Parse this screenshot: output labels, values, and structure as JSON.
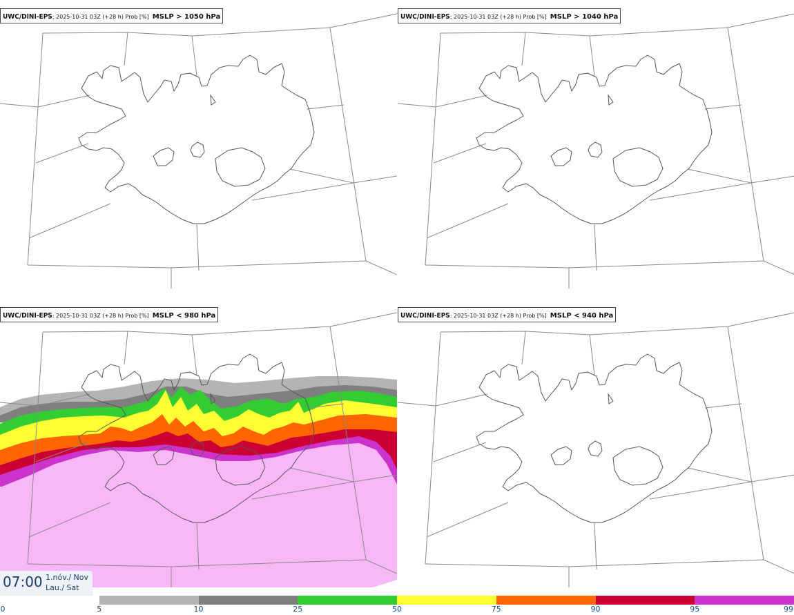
{
  "panels": [
    {
      "id": "p1",
      "model": "UWC/DINI-EPS",
      "run": "2025-10-31 03Z (+28 h) Prob [%]",
      "param": "MSLP > 1050 hPa",
      "has_probability_field": false
    },
    {
      "id": "p2",
      "model": "UWC/DINI-EPS",
      "run": "2025-10-31 03Z (+28 h) Prob [%]",
      "param": "MSLP > 1040 hPa",
      "has_probability_field": false
    },
    {
      "id": "p3",
      "model": "UWC/DINI-EPS",
      "run": "2025-10-31 03Z (+28 h) Prob [%]",
      "param": "MSLP < 980 hPa",
      "has_probability_field": true
    },
    {
      "id": "p4",
      "model": "UWC/DINI-EPS",
      "run": "2025-10-31 03Z (+28 h) Prob [%]",
      "param": "MSLP < 940 hPa",
      "has_probability_field": false
    }
  ],
  "valid_time": {
    "time": "07:00",
    "date_line1": "1.nóv./ Nov",
    "date_line2": "Lau./ Sat"
  },
  "colorbar": {
    "ticks": [
      "0",
      "5",
      "10",
      "25",
      "50",
      "75",
      "90",
      "95",
      "99"
    ],
    "colors": [
      "#ffffff",
      "#b4b4b4",
      "#7f7f7f",
      "#33cc33",
      "#ffff33",
      "#ff6600",
      "#cc0033",
      "#cc33cc",
      "#f8b8f8"
    ]
  },
  "colors": {
    "coast": "#555555",
    "grid": "#888888",
    "title_border": "#444444",
    "time_text": "#1b3a66",
    "label_text": "#1b4c8a"
  }
}
